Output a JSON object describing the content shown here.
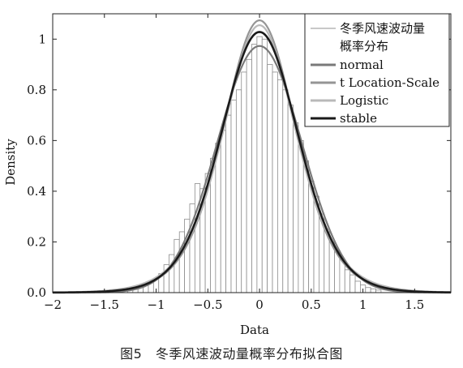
{
  "caption": "图5　冬季风速波动量概率分布拟合图",
  "chart_data": {
    "type": "bar",
    "xlabel": "Data",
    "ylabel": "Density",
    "xlim": [
      -2,
      1.85
    ],
    "ylim": [
      0,
      1.1
    ],
    "x_ticks": [
      "-2",
      "-1.5",
      "-1",
      "-0.5",
      "0",
      "0.5",
      "1",
      "1.5"
    ],
    "y_ticks": [
      "0.0",
      "0.2",
      "0.4",
      "0.6",
      "0.8",
      "1"
    ],
    "grid": false,
    "legend_position": "top-right",
    "histogram": {
      "name_line1": "冬季风速波动量",
      "name_line2": "概率分布",
      "bin_width": 0.05,
      "bins": [
        {
          "x": -1.25,
          "density": 0.01
        },
        {
          "x": -1.2,
          "density": 0.015
        },
        {
          "x": -1.15,
          "density": 0.02
        },
        {
          "x": -1.1,
          "density": 0.03
        },
        {
          "x": -1.05,
          "density": 0.04
        },
        {
          "x": -1.0,
          "density": 0.055
        },
        {
          "x": -0.95,
          "density": 0.075
        },
        {
          "x": -0.9,
          "density": 0.11
        },
        {
          "x": -0.85,
          "density": 0.15
        },
        {
          "x": -0.8,
          "density": 0.21
        },
        {
          "x": -0.75,
          "density": 0.24
        },
        {
          "x": -0.7,
          "density": 0.29
        },
        {
          "x": -0.65,
          "density": 0.35
        },
        {
          "x": -0.6,
          "density": 0.43
        },
        {
          "x": -0.55,
          "density": 0.41
        },
        {
          "x": -0.5,
          "density": 0.47
        },
        {
          "x": -0.45,
          "density": 0.53
        },
        {
          "x": -0.4,
          "density": 0.59
        },
        {
          "x": -0.35,
          "density": 0.64
        },
        {
          "x": -0.3,
          "density": 0.7
        },
        {
          "x": -0.25,
          "density": 0.76
        },
        {
          "x": -0.2,
          "density": 0.8
        },
        {
          "x": -0.15,
          "density": 0.87
        },
        {
          "x": -0.1,
          "density": 0.92
        },
        {
          "x": -0.05,
          "density": 0.98
        },
        {
          "x": 0.0,
          "density": 1.01
        },
        {
          "x": 0.05,
          "density": 1.0
        },
        {
          "x": 0.1,
          "density": 0.9
        },
        {
          "x": 0.15,
          "density": 0.87
        },
        {
          "x": 0.2,
          "density": 0.84
        },
        {
          "x": 0.25,
          "density": 0.8
        },
        {
          "x": 0.3,
          "density": 0.74
        },
        {
          "x": 0.35,
          "density": 0.67
        },
        {
          "x": 0.4,
          "density": 0.6
        },
        {
          "x": 0.45,
          "density": 0.52
        },
        {
          "x": 0.5,
          "density": 0.44
        },
        {
          "x": 0.55,
          "density": 0.38
        },
        {
          "x": 0.6,
          "density": 0.31
        },
        {
          "x": 0.65,
          "density": 0.25
        },
        {
          "x": 0.7,
          "density": 0.2
        },
        {
          "x": 0.75,
          "density": 0.16
        },
        {
          "x": 0.8,
          "density": 0.13
        },
        {
          "x": 0.85,
          "density": 0.09
        },
        {
          "x": 0.9,
          "density": 0.07
        },
        {
          "x": 0.95,
          "density": 0.045
        },
        {
          "x": 1.0,
          "density": 0.03
        },
        {
          "x": 1.05,
          "density": 0.02
        },
        {
          "x": 1.1,
          "density": 0.015
        },
        {
          "x": 1.15,
          "density": 0.01
        }
      ]
    },
    "series": [
      {
        "name": "normal",
        "color": "#7a7a7a",
        "width": 2.2,
        "dist": "normal",
        "mu": 0.0,
        "sigma": 0.41
      },
      {
        "name": "t Location-Scale",
        "color": "#959595",
        "width": 2.2,
        "dist": "t",
        "mu": 0.0,
        "scale": 0.36,
        "nu": 8
      },
      {
        "name": "Logistic",
        "color": "#b9b9b9",
        "width": 2.2,
        "dist": "logistic",
        "mu": 0.0,
        "s": 0.237
      },
      {
        "name": "stable",
        "color": "#1a1a1a",
        "width": 2.6,
        "dist": "t",
        "mu": 0.0,
        "scale": 0.38,
        "nu": 12
      }
    ]
  }
}
